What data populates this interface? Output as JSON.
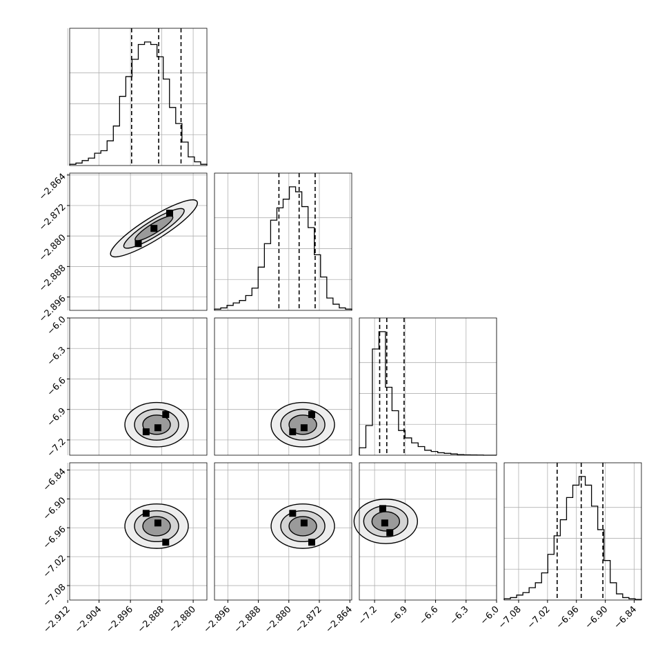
{
  "chart_data": {
    "type": "corner",
    "grid": true,
    "parameters": [
      {
        "range": [
          -2.9115,
          -2.8765
        ],
        "ticks": [
          -2.912,
          -2.904,
          -2.896,
          -2.888,
          -2.88
        ],
        "tick_labels": [
          "−2.912",
          "−2.904",
          "−2.896",
          "−2.888",
          "−2.880"
        ],
        "quantiles": [
          -2.8957,
          -2.8888,
          -2.8831
        ],
        "histogram": {
          "edges": [
            -2.9115,
            -2.8765
          ],
          "counts": [
            0.01,
            0.02,
            0.04,
            0.06,
            0.1,
            0.12,
            0.2,
            0.32,
            0.56,
            0.72,
            0.86,
            0.98,
            1.0,
            0.98,
            0.88,
            0.7,
            0.47,
            0.34,
            0.19,
            0.07,
            0.03,
            0.01
          ]
        }
      },
      {
        "range": [
          -2.8995,
          -2.8635
        ],
        "ticks": [
          -2.896,
          -2.888,
          -2.88,
          -2.872,
          -2.864
        ],
        "tick_labels": [
          "−2.896",
          "−2.888",
          "−2.880",
          "−2.872",
          "−2.864"
        ],
        "quantiles": [
          -2.8826,
          -2.8773,
          -2.8731
        ],
        "histogram": {
          "edges": [
            -2.8995,
            -2.8635
          ],
          "counts": [
            0.01,
            0.02,
            0.04,
            0.06,
            0.08,
            0.12,
            0.18,
            0.35,
            0.54,
            0.73,
            0.83,
            0.9,
            1.0,
            0.96,
            0.84,
            0.67,
            0.45,
            0.27,
            0.1,
            0.05,
            0.02,
            0.01
          ]
        }
      },
      {
        "range": [
          -7.35,
          -6.0
        ],
        "ticks": [
          -7.2,
          -6.9,
          -6.6,
          -6.3,
          -6.0
        ],
        "tick_labels": [
          "−7.2",
          "−6.9",
          "−6.6",
          "−6.3",
          "−6.0"
        ],
        "quantiles": [
          -7.15,
          -7.08,
          -6.91
        ],
        "histogram": {
          "edges": [
            -7.35,
            -6.0
          ],
          "counts": [
            0.06,
            0.24,
            0.86,
            1.0,
            0.55,
            0.36,
            0.2,
            0.14,
            0.1,
            0.07,
            0.04,
            0.03,
            0.02,
            0.015,
            0.01,
            0.005,
            0.003,
            0.002,
            0.001,
            0.0,
            0.0
          ]
        }
      },
      {
        "range": [
          -7.11,
          -6.825
        ],
        "ticks": [
          -7.08,
          -7.02,
          -6.96,
          -6.9,
          -6.84
        ],
        "tick_labels": [
          "−7.08",
          "−7.02",
          "−6.96",
          "−6.90",
          "−6.84"
        ],
        "quantiles": [
          -7.0,
          -6.95,
          -6.905
        ],
        "histogram": {
          "edges": [
            -7.11,
            -6.825
          ],
          "counts": [
            0.01,
            0.02,
            0.04,
            0.06,
            0.1,
            0.14,
            0.22,
            0.37,
            0.52,
            0.65,
            0.83,
            0.93,
            1.0,
            0.93,
            0.76,
            0.57,
            0.32,
            0.14,
            0.05,
            0.02,
            0.01,
            0.005
          ]
        }
      }
    ],
    "scatter": [
      {
        "x": 0,
        "y": 1,
        "points": [
          [
            -2.894,
            -2.882
          ],
          [
            -2.886,
            -2.874
          ],
          [
            -2.89,
            -2.878
          ]
        ]
      },
      {
        "x": 0,
        "y": 2,
        "points": [
          [
            -2.892,
            -7.12
          ],
          [
            -2.889,
            -7.08
          ],
          [
            -2.887,
            -6.95
          ]
        ]
      },
      {
        "x": 1,
        "y": 2,
        "points": [
          [
            -2.879,
            -7.12
          ],
          [
            -2.876,
            -7.08
          ],
          [
            -2.874,
            -6.95
          ]
        ]
      },
      {
        "x": 0,
        "y": 3,
        "points": [
          [
            -2.892,
            -6.93
          ],
          [
            -2.889,
            -6.95
          ],
          [
            -2.887,
            -6.99
          ]
        ]
      },
      {
        "x": 1,
        "y": 3,
        "points": [
          [
            -2.879,
            -6.93
          ],
          [
            -2.876,
            -6.95
          ],
          [
            -2.874,
            -6.99
          ]
        ]
      },
      {
        "x": 2,
        "y": 3,
        "points": [
          [
            -7.12,
            -6.92
          ],
          [
            -7.1,
            -6.95
          ],
          [
            -7.05,
            -6.97
          ]
        ]
      }
    ]
  }
}
